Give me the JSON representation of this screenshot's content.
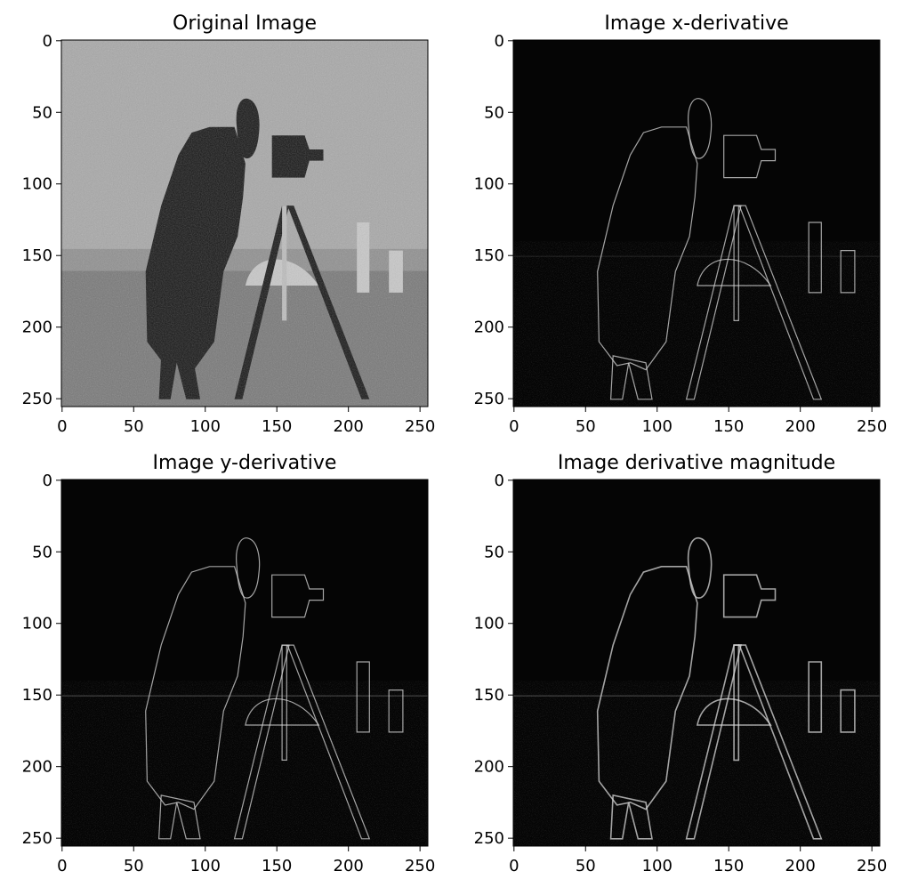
{
  "figure": {
    "panels": [
      {
        "id": "original",
        "title": "Original Image",
        "mode": "photo"
      },
      {
        "id": "xderiv",
        "title": "Image x-derivative",
        "mode": "edges"
      },
      {
        "id": "yderiv",
        "title": "Image y-derivative",
        "mode": "edges"
      },
      {
        "id": "magnitude",
        "title": "Image derivative magnitude",
        "mode": "edges"
      }
    ],
    "axes": {
      "x_ticks": [
        0,
        50,
        100,
        150,
        200,
        250
      ],
      "y_ticks": [
        0,
        50,
        100,
        150,
        200,
        250
      ],
      "x_tick_labels": [
        "0",
        "50",
        "100",
        "150",
        "200",
        "250"
      ],
      "y_tick_labels": [
        "0",
        "50",
        "100",
        "150",
        "200",
        "250"
      ],
      "xlim": [
        -0.5,
        255.5
      ],
      "ylim": [
        255.5,
        -0.5
      ]
    },
    "colors": {
      "sky": "#a8a8a8",
      "ground": "#777777",
      "figure": "#141414",
      "edge_background": "#050505",
      "edge_line": "#d9d9d9"
    }
  }
}
